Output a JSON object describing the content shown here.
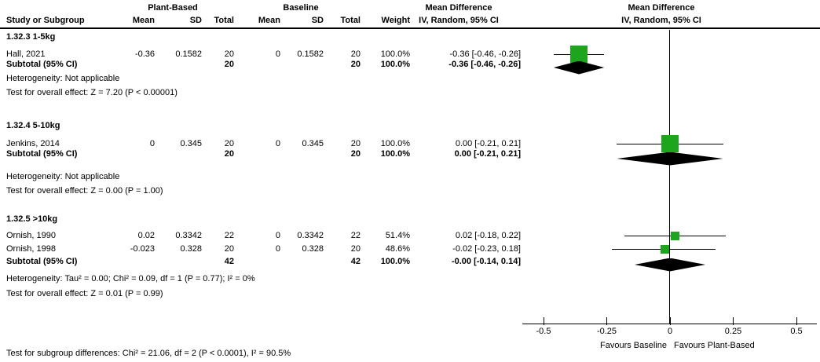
{
  "header": {
    "group_plant": "Plant-Based",
    "group_baseline": "Baseline",
    "md_stats_title": "Mean Difference",
    "md_graph_title": "Mean Difference",
    "col_study": "Study or Subgroup",
    "col_mean_pb": "Mean",
    "col_sd_pb": "SD",
    "col_total_pb": "Total",
    "col_mean_bl": "Mean",
    "col_sd_bl": "SD",
    "col_total_bl": "Total",
    "col_weight": "Weight",
    "col_ci_stats": "IV, Random, 95% CI",
    "col_ci_graph": "IV, Random, 95% CI"
  },
  "sections": [
    {
      "label": "1.32.3 1-5kg",
      "studies": [
        {
          "name": "Hall, 2021",
          "mean_pb": "-0.36",
          "sd_pb": "0.1582",
          "total_pb": "20",
          "mean_bl": "0",
          "sd_bl": "0.1582",
          "total_bl": "20",
          "weight": "100.0%",
          "ci": "-0.36 [-0.46, -0.26]"
        }
      ],
      "subtotal": {
        "name": "Subtotal (95% CI)",
        "total_pb": "20",
        "total_bl": "20",
        "weight": "100.0%",
        "ci": "-0.36 [-0.46, -0.26]"
      },
      "heterogeneity": "Heterogeneity: Not applicable",
      "overall": "Test for overall effect: Z = 7.20 (P < 0.00001)"
    },
    {
      "label": "1.32.4 5-10kg",
      "studies": [
        {
          "name": "Jenkins, 2014",
          "mean_pb": "0",
          "sd_pb": "0.345",
          "total_pb": "20",
          "mean_bl": "0",
          "sd_bl": "0.345",
          "total_bl": "20",
          "weight": "100.0%",
          "ci": "0.00 [-0.21, 0.21]"
        }
      ],
      "subtotal": {
        "name": "Subtotal (95% CI)",
        "total_pb": "20",
        "total_bl": "20",
        "weight": "100.0%",
        "ci": "0.00 [-0.21, 0.21]"
      },
      "heterogeneity": "Heterogeneity: Not applicable",
      "overall": "Test for overall effect: Z = 0.00 (P = 1.00)"
    },
    {
      "label": "1.32.5 >10kg",
      "studies": [
        {
          "name": "Ornish, 1990",
          "mean_pb": "0.02",
          "sd_pb": "0.3342",
          "total_pb": "22",
          "mean_bl": "0",
          "sd_bl": "0.3342",
          "total_bl": "22",
          "weight": "51.4%",
          "ci": "0.02 [-0.18, 0.22]"
        },
        {
          "name": "Ornish, 1998",
          "mean_pb": "-0.023",
          "sd_pb": "0.328",
          "total_pb": "20",
          "mean_bl": "0",
          "sd_bl": "0.328",
          "total_bl": "20",
          "weight": "48.6%",
          "ci": "-0.02 [-0.23, 0.18]"
        }
      ],
      "subtotal": {
        "name": "Subtotal (95% CI)",
        "total_pb": "42",
        "total_bl": "42",
        "weight": "100.0%",
        "ci": "-0.00 [-0.14, 0.14]"
      },
      "heterogeneity": "Heterogeneity: Tau² = 0.00; Chi² = 0.09, df = 1 (P = 0.77); I² = 0%",
      "overall": "Test for overall effect: Z = 0.01 (P = 0.99)"
    }
  ],
  "footer": {
    "subgroup_test": "Test for subgroup differences: Chi² = 21.06, df = 2 (P < 0.0001), I² = 90.5%",
    "favours_left": "Favours Baseline",
    "favours_right": "Favours Plant-Based"
  },
  "chart_data": {
    "type": "forest",
    "title": "Mean Difference",
    "effect_model": "IV, Random, 95% CI",
    "axis": {
      "min": -0.5,
      "max": 0.5,
      "ticks": [
        -0.5,
        -0.25,
        0,
        0.25,
        0.5
      ],
      "tick_labels": [
        "-0.5",
        "-0.25",
        "0",
        "0.25",
        "0.5"
      ],
      "label_left": "Favours Baseline",
      "label_right": "Favours Plant-Based"
    },
    "colors": {
      "square": "#1da51d",
      "diamond": "#000000",
      "line": "#000000"
    },
    "rows": [
      {
        "label": "Hall, 2021",
        "kind": "study",
        "est": -0.36,
        "lo": -0.46,
        "hi": -0.26,
        "weight": 100.0
      },
      {
        "label": "Subtotal (95% CI)",
        "kind": "diamond",
        "est": -0.36,
        "lo": -0.46,
        "hi": -0.26
      },
      {
        "label": "Jenkins, 2014",
        "kind": "study",
        "est": 0.0,
        "lo": -0.21,
        "hi": 0.21,
        "weight": 100.0
      },
      {
        "label": "Subtotal (95% CI)",
        "kind": "diamond",
        "est": 0.0,
        "lo": -0.21,
        "hi": 0.21
      },
      {
        "label": "Ornish, 1990",
        "kind": "study",
        "est": 0.02,
        "lo": -0.18,
        "hi": 0.22,
        "weight": 51.4
      },
      {
        "label": "Ornish, 1998",
        "kind": "study",
        "est": -0.02,
        "lo": -0.23,
        "hi": 0.18,
        "weight": 48.6
      },
      {
        "label": "Subtotal (95% CI)",
        "kind": "diamond",
        "est": -0.0,
        "lo": -0.14,
        "hi": 0.14
      }
    ]
  }
}
